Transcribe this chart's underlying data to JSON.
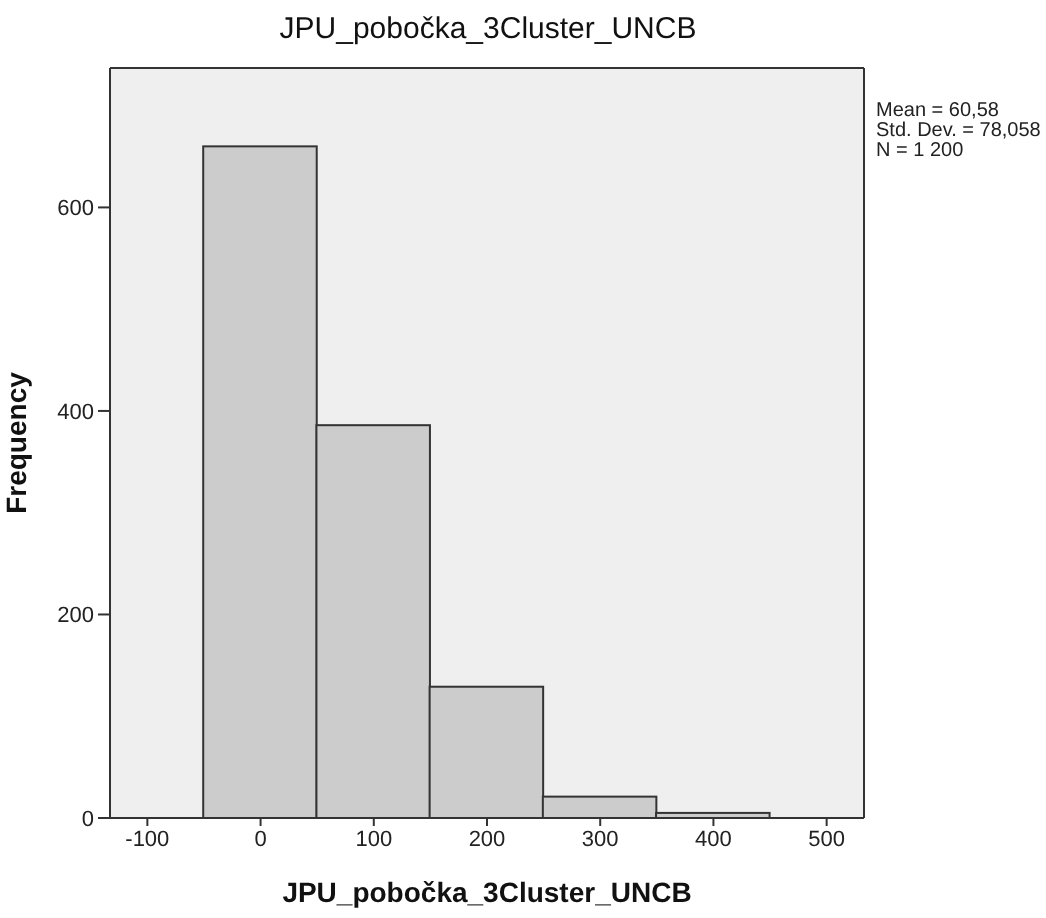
{
  "chart_data": {
    "type": "histogram",
    "title": "JPU_pobočka_3Cluster_UNCB",
    "xlabel": "JPU_pobočka_3Cluster_UNCB",
    "ylabel": "Frequency",
    "bins": [
      -50,
      50,
      150,
      250,
      350,
      450
    ],
    "values": [
      660,
      386,
      129,
      21,
      5
    ],
    "color": "#cccccc",
    "xlim": [
      -133,
      533
    ],
    "xticks": [
      -100,
      0,
      100,
      200,
      300,
      400,
      500
    ],
    "ylim": [
      0,
      737
    ],
    "yticks": [
      0,
      200,
      400,
      600
    ],
    "annotations": [
      "Mean = 60,58",
      "Std. Dev. = 78,058",
      "N = 1 200"
    ],
    "grid": false,
    "legend": false
  }
}
